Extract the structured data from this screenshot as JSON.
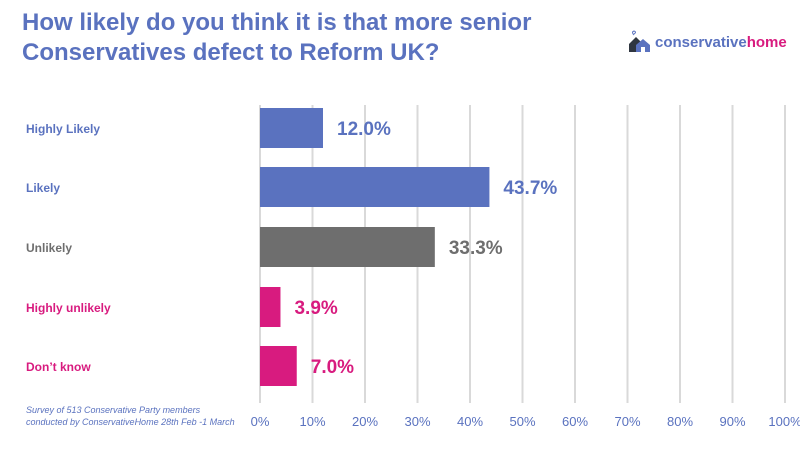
{
  "title_line1": "How likely do you think it is that more senior",
  "title_line2": "Conservatives defect to Reform UK?",
  "logo": {
    "part1": "conservative",
    "part2": "home"
  },
  "note_line1": "Survey of 513 Conservative Party members",
  "note_line2": "conducted by ConservativeHome 28th Feb -1 March",
  "chart_data": {
    "type": "bar",
    "orientation": "horizontal",
    "title": "How likely do you think it is that more senior Conservatives defect to Reform UK?",
    "categories": [
      "Highly Likely",
      "Likely",
      "Unlikely",
      "Highly unlikely",
      "Don’t know"
    ],
    "values": [
      12.0,
      43.7,
      33.3,
      3.9,
      7.0
    ],
    "value_labels": [
      "12.0%",
      "43.7%",
      "33.3%",
      "3.9%",
      "7.0%"
    ],
    "colors": [
      "#5a72bf",
      "#5a72bf",
      "#6e6e6e",
      "#d81b7f",
      "#d81b7f"
    ],
    "xlim": [
      0,
      100
    ],
    "xticks": [
      "0%",
      "10%",
      "20%",
      "30%",
      "40%",
      "50%",
      "60%",
      "70%",
      "80%",
      "90%",
      "100%"
    ],
    "grid": true
  }
}
